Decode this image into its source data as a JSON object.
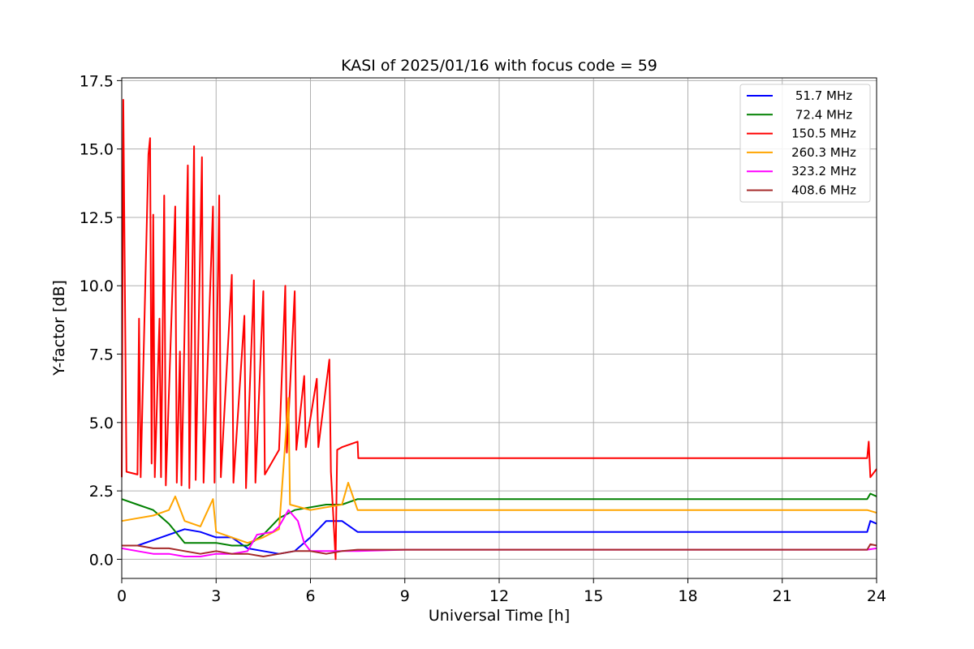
{
  "chart_data": {
    "type": "line",
    "title": "KASI of 2025/01/16 with focus code = 59",
    "xlabel": "Universal Time [h]",
    "ylabel": "Y-factor [dB]",
    "xlim": [
      0,
      24
    ],
    "ylim": [
      -0.7,
      17.6
    ],
    "xticks": [
      0,
      3,
      6,
      9,
      12,
      15,
      18,
      21,
      24
    ],
    "xtick_labels": [
      "0",
      "3",
      "6",
      "9",
      "12",
      "15",
      "18",
      "21",
      "24"
    ],
    "yticks": [
      0,
      2.5,
      5,
      7.5,
      10,
      12.5,
      15,
      17.5
    ],
    "ytick_labels": [
      "0.0",
      "2.5",
      "5.0",
      "7.5",
      "10.0",
      "12.5",
      "15.0",
      "17.5"
    ],
    "grid": true,
    "legend_position": "top-right",
    "series": [
      {
        "name": " 51.7 MHz",
        "color": "#0000ff",
        "points": [
          [
            0,
            0.5
          ],
          [
            0.5,
            0.5
          ],
          [
            1,
            0.7
          ],
          [
            1.5,
            0.9
          ],
          [
            2,
            1.1
          ],
          [
            2.5,
            1.0
          ],
          [
            3,
            0.8
          ],
          [
            3.5,
            0.8
          ],
          [
            4,
            0.4
          ],
          [
            4.5,
            0.3
          ],
          [
            5,
            0.2
          ],
          [
            5.5,
            0.3
          ],
          [
            6,
            0.8
          ],
          [
            6.5,
            1.4
          ],
          [
            7,
            1.4
          ],
          [
            7.5,
            1.0
          ],
          [
            9,
            1.0
          ],
          [
            12,
            1.0
          ],
          [
            15,
            1.0
          ],
          [
            18,
            1.0
          ],
          [
            21,
            1.0
          ],
          [
            23.7,
            1.0
          ],
          [
            23.8,
            1.4
          ],
          [
            24,
            1.3
          ]
        ]
      },
      {
        "name": " 72.4 MHz",
        "color": "#008000",
        "points": [
          [
            0,
            2.2
          ],
          [
            0.5,
            2.0
          ],
          [
            1,
            1.8
          ],
          [
            1.5,
            1.3
          ],
          [
            2,
            0.6
          ],
          [
            2.5,
            0.6
          ],
          [
            3,
            0.6
          ],
          [
            3.5,
            0.5
          ],
          [
            4,
            0.5
          ],
          [
            4.5,
            0.9
          ],
          [
            5,
            1.5
          ],
          [
            5.5,
            1.8
          ],
          [
            6,
            1.9
          ],
          [
            6.5,
            2.0
          ],
          [
            7,
            2.0
          ],
          [
            7.5,
            2.2
          ],
          [
            9,
            2.2
          ],
          [
            12,
            2.2
          ],
          [
            15,
            2.2
          ],
          [
            18,
            2.2
          ],
          [
            21,
            2.2
          ],
          [
            23.7,
            2.2
          ],
          [
            23.8,
            2.4
          ],
          [
            24,
            2.3
          ]
        ]
      },
      {
        "name": "150.5 MHz",
        "color": "#ff0000",
        "points": [
          [
            0,
            3.0
          ],
          [
            0.05,
            16.8
          ],
          [
            0.15,
            3.2
          ],
          [
            0.5,
            3.1
          ],
          [
            0.55,
            8.8
          ],
          [
            0.6,
            3.0
          ],
          [
            0.85,
            14.8
          ],
          [
            0.9,
            15.4
          ],
          [
            0.95,
            3.5
          ],
          [
            1.0,
            12.6
          ],
          [
            1.05,
            3.0
          ],
          [
            1.2,
            8.8
          ],
          [
            1.25,
            3.0
          ],
          [
            1.35,
            13.3
          ],
          [
            1.4,
            2.7
          ],
          [
            1.7,
            12.9
          ],
          [
            1.75,
            2.8
          ],
          [
            1.85,
            7.6
          ],
          [
            1.9,
            2.7
          ],
          [
            2.1,
            14.4
          ],
          [
            2.15,
            2.6
          ],
          [
            2.3,
            15.1
          ],
          [
            2.35,
            2.9
          ],
          [
            2.55,
            14.7
          ],
          [
            2.6,
            2.8
          ],
          [
            2.9,
            12.9
          ],
          [
            2.95,
            2.8
          ],
          [
            3.1,
            13.3
          ],
          [
            3.15,
            3.0
          ],
          [
            3.5,
            10.4
          ],
          [
            3.55,
            2.8
          ],
          [
            3.9,
            8.9
          ],
          [
            3.95,
            2.6
          ],
          [
            4.2,
            10.2
          ],
          [
            4.25,
            2.8
          ],
          [
            4.5,
            9.8
          ],
          [
            4.55,
            3.1
          ],
          [
            5.0,
            4.0
          ],
          [
            5.2,
            10.0
          ],
          [
            5.25,
            3.9
          ],
          [
            5.5,
            9.8
          ],
          [
            5.55,
            4.0
          ],
          [
            5.8,
            6.7
          ],
          [
            5.85,
            4.1
          ],
          [
            6.2,
            6.6
          ],
          [
            6.25,
            4.1
          ],
          [
            6.6,
            7.3
          ],
          [
            6.65,
            3.2
          ],
          [
            6.8,
            0.0
          ],
          [
            6.85,
            4.0
          ],
          [
            7.0,
            4.1
          ],
          [
            7.5,
            4.3
          ],
          [
            7.52,
            3.7
          ],
          [
            9,
            3.7
          ],
          [
            12,
            3.7
          ],
          [
            15,
            3.7
          ],
          [
            18,
            3.7
          ],
          [
            21,
            3.7
          ],
          [
            23.7,
            3.7
          ],
          [
            23.75,
            4.3
          ],
          [
            23.8,
            3.0
          ],
          [
            24,
            3.3
          ]
        ]
      },
      {
        "name": "260.3 MHz",
        "color": "#ffa500",
        "points": [
          [
            0,
            1.4
          ],
          [
            0.5,
            1.5
          ],
          [
            1,
            1.6
          ],
          [
            1.5,
            1.8
          ],
          [
            1.7,
            2.3
          ],
          [
            2,
            1.4
          ],
          [
            2.5,
            1.2
          ],
          [
            2.9,
            2.2
          ],
          [
            3,
            1.0
          ],
          [
            3.5,
            0.8
          ],
          [
            4,
            0.6
          ],
          [
            4.5,
            0.8
          ],
          [
            5,
            1.1
          ],
          [
            5.3,
            5.9
          ],
          [
            5.35,
            2.0
          ],
          [
            6,
            1.8
          ],
          [
            6.5,
            1.9
          ],
          [
            7,
            2.0
          ],
          [
            7.2,
            2.8
          ],
          [
            7.5,
            1.8
          ],
          [
            9,
            1.8
          ],
          [
            12,
            1.8
          ],
          [
            15,
            1.8
          ],
          [
            18,
            1.8
          ],
          [
            21,
            1.8
          ],
          [
            23.7,
            1.8
          ],
          [
            24,
            1.7
          ]
        ]
      },
      {
        "name": "323.2 MHz",
        "color": "#ff00ff",
        "points": [
          [
            0,
            0.4
          ],
          [
            0.5,
            0.3
          ],
          [
            1,
            0.2
          ],
          [
            1.5,
            0.2
          ],
          [
            2,
            0.1
          ],
          [
            2.5,
            0.1
          ],
          [
            3,
            0.2
          ],
          [
            3.5,
            0.2
          ],
          [
            4,
            0.3
          ],
          [
            4.3,
            0.9
          ],
          [
            4.8,
            1.0
          ],
          [
            5,
            1.2
          ],
          [
            5.3,
            1.8
          ],
          [
            5.6,
            1.4
          ],
          [
            5.8,
            0.6
          ],
          [
            6,
            0.3
          ],
          [
            7,
            0.3
          ],
          [
            7.5,
            0.3
          ],
          [
            9,
            0.35
          ],
          [
            12,
            0.35
          ],
          [
            15,
            0.35
          ],
          [
            18,
            0.35
          ],
          [
            21,
            0.35
          ],
          [
            23.7,
            0.35
          ],
          [
            24,
            0.4
          ]
        ]
      },
      {
        "name": "408.6 MHz",
        "color": "#a52a2a",
        "points": [
          [
            0,
            0.5
          ],
          [
            0.5,
            0.5
          ],
          [
            1,
            0.4
          ],
          [
            1.5,
            0.4
          ],
          [
            2,
            0.3
          ],
          [
            2.5,
            0.2
          ],
          [
            3,
            0.3
          ],
          [
            3.5,
            0.2
          ],
          [
            4,
            0.2
          ],
          [
            4.5,
            0.1
          ],
          [
            5,
            0.2
          ],
          [
            5.5,
            0.3
          ],
          [
            6,
            0.3
          ],
          [
            6.5,
            0.2
          ],
          [
            7,
            0.3
          ],
          [
            7.5,
            0.35
          ],
          [
            9,
            0.35
          ],
          [
            12,
            0.35
          ],
          [
            15,
            0.35
          ],
          [
            18,
            0.35
          ],
          [
            21,
            0.35
          ],
          [
            23.7,
            0.35
          ],
          [
            23.8,
            0.55
          ],
          [
            24,
            0.5
          ]
        ]
      }
    ]
  }
}
